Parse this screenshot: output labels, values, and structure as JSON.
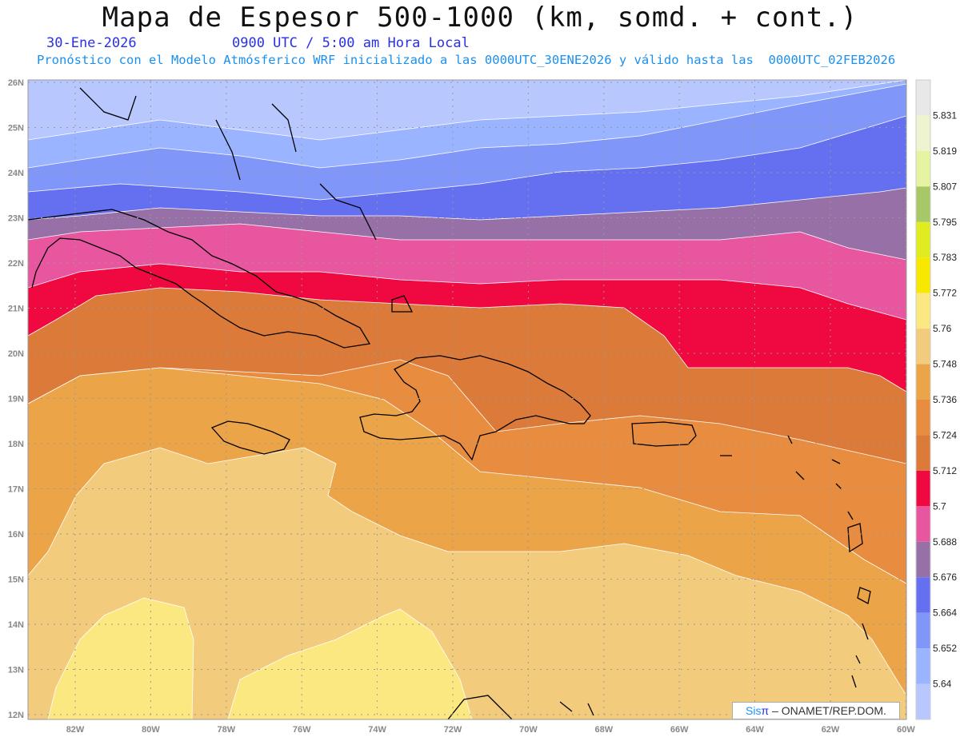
{
  "header": {
    "title": "Mapa de Espesor 500-1000 (km, somd. + cont.)",
    "date": "30-Ene-2026",
    "time": "0900 UTC / 5:00 am Hora Local",
    "subtitle": "Pronóstico con el Modelo Atmósferico WRF inicializado a las 0000UTC_30ENE2026 y válido hasta las  0000UTC_02FEB2026"
  },
  "map": {
    "lat_labels": [
      "26N",
      "25N",
      "24N",
      "23N",
      "22N",
      "21N",
      "20N",
      "19N",
      "18N",
      "17N",
      "16N",
      "15N",
      "14N",
      "13N",
      "12N"
    ],
    "lon_labels": [
      "82W",
      "80W",
      "78W",
      "76W",
      "74W",
      "72W",
      "70W",
      "68W",
      "66W",
      "64W",
      "62W",
      "60W"
    ]
  },
  "colorbar": {
    "labels": [
      "5.64",
      "5.652",
      "5.664",
      "5.676",
      "5.688",
      "5.7",
      "5.712",
      "5.724",
      "5.736",
      "5.748",
      "5.76",
      "5.772",
      "5.783",
      "5.795",
      "5.807",
      "5.819",
      "5.831"
    ],
    "colors": [
      "#b8c8ff",
      "#9ab4ff",
      "#8096f8",
      "#6470f0",
      "#9870a8",
      "#e856a0",
      "#f00840",
      "#dc7a3a",
      "#e88c40",
      "#eca448",
      "#f2cc7c",
      "#fce880",
      "#f8e800",
      "#e0ec20",
      "#a8c868",
      "#e4f4a0",
      "#eef4d0",
      "#e8e8e8"
    ]
  },
  "credit": {
    "brand": "Sis",
    "pi": "π",
    "text": " –  ONAMET/REP.DOM."
  }
}
